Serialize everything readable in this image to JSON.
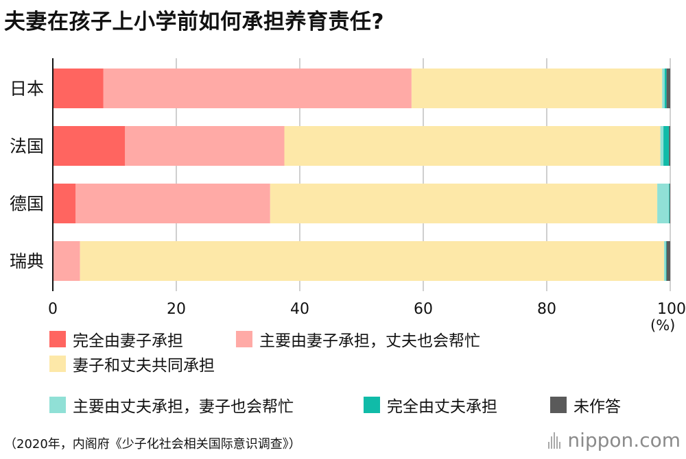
{
  "title": "夫妻在孩子上小学前如何承担养育责任?",
  "source": "（2020年，内阁府《少子化社会相关国际意识调查》）",
  "brand": {
    "name": "nippon",
    "dot": ".",
    "suffix": "com",
    "icon": "bars-logo-icon"
  },
  "colors": {
    "wife_full": "#ff6560",
    "wife_main": "#ffaaa6",
    "both": "#fde8a8",
    "husband_main": "#90e0d6",
    "husband_full": "#10bba8",
    "no_answer": "#5a5a5a"
  },
  "legend": [
    {
      "label": "完全由妻子承担",
      "color": "#ff6560"
    },
    {
      "label": "主要由妻子承担，丈夫也会帮忙",
      "color": "#ffaaa6"
    },
    {
      "label": "妻子和丈夫共同承担",
      "color": "#fde8a8"
    },
    {
      "label": "主要由丈夫承担，妻子也会帮忙",
      "color": "#90e0d6"
    },
    {
      "label": "完全由丈夫承担",
      "color": "#10bba8"
    },
    {
      "label": "未作答",
      "color": "#5a5a5a"
    }
  ],
  "chart_data": {
    "type": "bar",
    "orientation": "horizontal",
    "stacked": true,
    "title": "夫妻在孩子上小学前如何承担养育责任?",
    "categories": [
      "日本",
      "法国",
      "德国",
      "瑞典"
    ],
    "series": [
      {
        "name": "完全由妻子承担",
        "values": [
          8.2,
          11.7,
          3.7,
          0.0
        ]
      },
      {
        "name": "主要由妻子承担，丈夫也会帮忙",
        "values": [
          49.9,
          25.8,
          31.5,
          4.4
        ]
      },
      {
        "name": "妻子和丈夫共同承担",
        "values": [
          40.6,
          60.9,
          62.7,
          94.6
        ]
      },
      {
        "name": "主要由丈夫承担，妻子也会帮忙",
        "values": [
          0.4,
          0.5,
          1.9,
          0.3
        ]
      },
      {
        "name": "完全由丈夫承担",
        "values": [
          0.3,
          0.9,
          0.1,
          0.1
        ]
      },
      {
        "name": "未作答",
        "values": [
          0.6,
          0.2,
          0.1,
          0.6
        ]
      }
    ],
    "xlim": [
      0,
      100
    ],
    "xticks": [
      "0",
      "20",
      "40",
      "60",
      "80",
      "100"
    ],
    "xunit": "(%)",
    "grid": true,
    "legend_position": "bottom"
  }
}
